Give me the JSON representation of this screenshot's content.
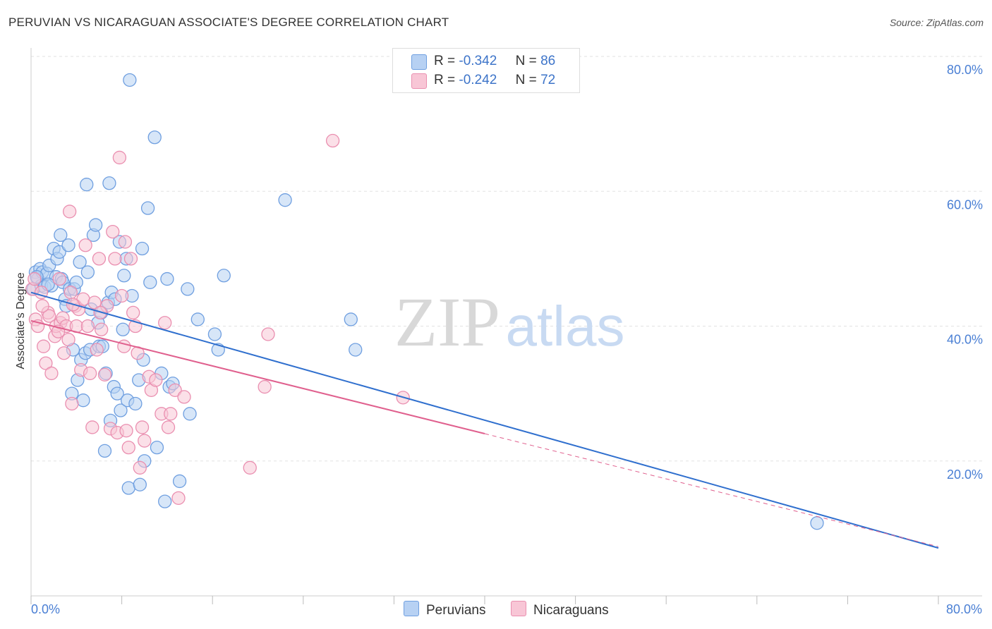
{
  "title": "PERUVIAN VS NICARAGUAN ASSOCIATE'S DEGREE CORRELATION CHART",
  "source": "Source: ZipAtlas.com",
  "watermark": {
    "zip": "ZIP",
    "atlas": "atlas"
  },
  "legend": {
    "r_label": "R =",
    "n_label": "N =",
    "series": [
      {
        "name": "Peruvians",
        "r": "-0.342",
        "n": "86",
        "fill": "#b7d1f3",
        "stroke": "#6f9fe0",
        "line": "#2f6fce"
      },
      {
        "name": "Nicaraguans",
        "r": "-0.242",
        "n": "72",
        "fill": "#f8c6d6",
        "stroke": "#ea8fb0",
        "line": "#e0608e"
      }
    ]
  },
  "chart_data": {
    "type": "scatter",
    "title": "PERUVIAN VS NICARAGUAN ASSOCIATE'S DEGREE CORRELATION CHART",
    "xlabel": "",
    "ylabel": "Associate's Degree",
    "xlim": [
      0,
      80
    ],
    "ylim": [
      0,
      80
    ],
    "x_tick_labels": [
      "0.0%",
      "80.0%"
    ],
    "y_ticks": [
      20,
      40,
      60,
      80
    ],
    "y_tick_labels": [
      "20.0%",
      "40.0%",
      "60.0%",
      "80.0%"
    ],
    "grid": true,
    "series": [
      {
        "name": "Peruvians",
        "points": [
          [
            0.2,
            45.5
          ],
          [
            0.4,
            48.0
          ],
          [
            0.6,
            47.0
          ],
          [
            0.8,
            48.5
          ],
          [
            0.9,
            46.0
          ],
          [
            1.0,
            48.0
          ],
          [
            1.2,
            45.8
          ],
          [
            1.4,
            47.8
          ],
          [
            1.6,
            49.0
          ],
          [
            1.8,
            46.0
          ],
          [
            2.0,
            51.5
          ],
          [
            2.2,
            47.3
          ],
          [
            2.3,
            50.0
          ],
          [
            2.5,
            51.0
          ],
          [
            2.6,
            53.5
          ],
          [
            2.7,
            47.0
          ],
          [
            2.8,
            46.5
          ],
          [
            3.0,
            44.0
          ],
          [
            3.1,
            43.0
          ],
          [
            3.3,
            52.0
          ],
          [
            3.4,
            45.5
          ],
          [
            3.6,
            30.0
          ],
          [
            3.7,
            36.5
          ],
          [
            3.8,
            45.5
          ],
          [
            4.0,
            46.5
          ],
          [
            4.1,
            32.0
          ],
          [
            4.3,
            49.5
          ],
          [
            4.4,
            35.0
          ],
          [
            4.6,
            29.0
          ],
          [
            4.8,
            36.0
          ],
          [
            4.9,
            61.0
          ],
          [
            5.0,
            48.0
          ],
          [
            5.2,
            36.5
          ],
          [
            5.3,
            42.5
          ],
          [
            5.5,
            53.5
          ],
          [
            5.7,
            55.0
          ],
          [
            5.9,
            40.5
          ],
          [
            6.0,
            37.0
          ],
          [
            6.2,
            42.0
          ],
          [
            6.3,
            37.0
          ],
          [
            6.5,
            21.5
          ],
          [
            6.6,
            33.0
          ],
          [
            6.8,
            43.5
          ],
          [
            6.9,
            61.2
          ],
          [
            7.0,
            26.0
          ],
          [
            7.1,
            45.0
          ],
          [
            7.3,
            31.0
          ],
          [
            7.4,
            44.0
          ],
          [
            7.6,
            30.0
          ],
          [
            7.8,
            52.5
          ],
          [
            7.9,
            27.5
          ],
          [
            8.1,
            39.5
          ],
          [
            8.2,
            47.5
          ],
          [
            8.4,
            50.0
          ],
          [
            8.5,
            29.0
          ],
          [
            8.6,
            16.0
          ],
          [
            8.7,
            76.5
          ],
          [
            8.9,
            44.5
          ],
          [
            9.2,
            28.5
          ],
          [
            9.5,
            32.0
          ],
          [
            9.6,
            16.5
          ],
          [
            9.8,
            51.5
          ],
          [
            9.9,
            35.0
          ],
          [
            10.0,
            20.0
          ],
          [
            10.3,
            57.5
          ],
          [
            10.5,
            46.5
          ],
          [
            10.9,
            68.0
          ],
          [
            11.1,
            22.0
          ],
          [
            11.5,
            33.0
          ],
          [
            11.8,
            14.0
          ],
          [
            12.0,
            47.0
          ],
          [
            12.2,
            31.0
          ],
          [
            12.5,
            31.5
          ],
          [
            13.1,
            17.0
          ],
          [
            13.8,
            45.5
          ],
          [
            14.0,
            27.0
          ],
          [
            14.7,
            41.0
          ],
          [
            16.2,
            38.8
          ],
          [
            16.5,
            36.5
          ],
          [
            17.0,
            47.5
          ],
          [
            22.4,
            58.7
          ],
          [
            28.2,
            41.0
          ],
          [
            28.6,
            36.5
          ],
          [
            69.3,
            10.8
          ],
          [
            0.5,
            47.3
          ],
          [
            1.5,
            46.2
          ]
        ],
        "trend": {
          "x0": 0,
          "y0": 45.0,
          "x1": 80,
          "y1": 7.1,
          "solid_to": 80
        }
      },
      {
        "name": "Nicaraguans",
        "points": [
          [
            0.1,
            45.5
          ],
          [
            0.3,
            47.0
          ],
          [
            0.4,
            41.0
          ],
          [
            0.6,
            40.0
          ],
          [
            0.9,
            45.0
          ],
          [
            1.1,
            37.0
          ],
          [
            1.3,
            34.5
          ],
          [
            1.5,
            42.0
          ],
          [
            1.6,
            41.5
          ],
          [
            1.8,
            33.0
          ],
          [
            2.1,
            38.5
          ],
          [
            2.2,
            40.0
          ],
          [
            2.5,
            47.0
          ],
          [
            2.6,
            40.5
          ],
          [
            2.8,
            41.2
          ],
          [
            2.9,
            36.0
          ],
          [
            3.1,
            40.0
          ],
          [
            3.3,
            38.0
          ],
          [
            3.4,
            57.0
          ],
          [
            3.5,
            45.0
          ],
          [
            3.6,
            28.5
          ],
          [
            3.9,
            43.0
          ],
          [
            4.0,
            40.0
          ],
          [
            4.2,
            42.5
          ],
          [
            4.4,
            33.5
          ],
          [
            4.6,
            44.0
          ],
          [
            4.8,
            52.0
          ],
          [
            5.0,
            40.0
          ],
          [
            5.2,
            33.0
          ],
          [
            5.4,
            25.0
          ],
          [
            5.6,
            43.5
          ],
          [
            5.8,
            36.5
          ],
          [
            6.0,
            50.0
          ],
          [
            6.2,
            39.5
          ],
          [
            6.5,
            32.8
          ],
          [
            6.7,
            43.0
          ],
          [
            7.0,
            24.8
          ],
          [
            7.2,
            54.0
          ],
          [
            7.4,
            50.0
          ],
          [
            7.6,
            24.2
          ],
          [
            7.8,
            65.0
          ],
          [
            8.0,
            44.5
          ],
          [
            8.2,
            37.0
          ],
          [
            8.4,
            24.5
          ],
          [
            8.6,
            22.0
          ],
          [
            8.8,
            50.0
          ],
          [
            9.0,
            42.0
          ],
          [
            9.2,
            40.0
          ],
          [
            9.4,
            36.0
          ],
          [
            9.6,
            19.0
          ],
          [
            9.8,
            25.0
          ],
          [
            10.0,
            23.0
          ],
          [
            10.4,
            32.5
          ],
          [
            10.6,
            30.5
          ],
          [
            11.0,
            32.0
          ],
          [
            11.5,
            27.0
          ],
          [
            11.8,
            40.5
          ],
          [
            12.1,
            25.0
          ],
          [
            12.3,
            27.0
          ],
          [
            12.7,
            30.5
          ],
          [
            13.0,
            14.5
          ],
          [
            13.5,
            29.5
          ],
          [
            19.3,
            19.0
          ],
          [
            20.6,
            31.0
          ],
          [
            20.9,
            38.8
          ],
          [
            26.6,
            67.5
          ],
          [
            32.8,
            29.4
          ],
          [
            6.1,
            42.0
          ],
          [
            3.7,
            43.2
          ],
          [
            2.4,
            39.2
          ],
          [
            1.0,
            43.0
          ],
          [
            8.3,
            52.5
          ]
        ],
        "trend": {
          "x0": 0,
          "y0": 40.8,
          "x1": 80,
          "y1": 7.3,
          "solid_to": 40
        }
      }
    ]
  }
}
